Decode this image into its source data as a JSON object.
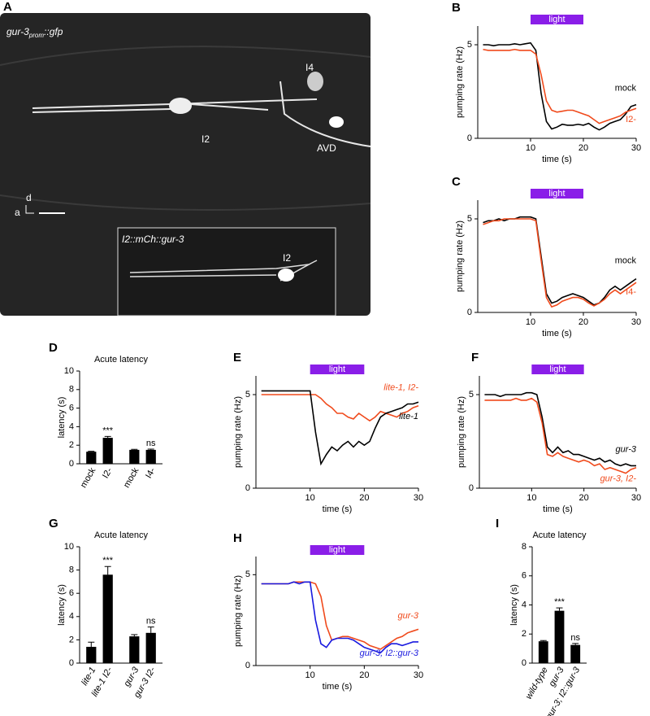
{
  "figure": {
    "panel": "A",
    "title": [
      "gur-3",
      "prom",
      "::gfp"
    ],
    "labels": [
      "I4",
      "I2",
      "AVD"
    ],
    "axes": [
      "a",
      "d"
    ],
    "inset": {
      "title": "I2::mCh::gur-3",
      "label": "I2"
    }
  },
  "chart_data": [
    {
      "panel": "B",
      "type": "line",
      "xlabel": "time (s)",
      "ylabel": "pumping rate (Hz)",
      "xlim": [
        0,
        30
      ],
      "xticks": [
        10,
        20,
        30
      ],
      "ylim": [
        0,
        6
      ],
      "yticks": [
        0,
        5
      ],
      "light": {
        "label": "light",
        "start": 10,
        "end": 20
      },
      "x": [
        1,
        2,
        3,
        4,
        5,
        6,
        7,
        8,
        9,
        10,
        11,
        12,
        13,
        14,
        15,
        16,
        17,
        18,
        19,
        20,
        21,
        22,
        23,
        24,
        25,
        26,
        27,
        28,
        29,
        30
      ],
      "series": [
        {
          "name": "mock",
          "color": "#000000",
          "values": [
            5.0,
            5.0,
            4.95,
            5.0,
            5.0,
            5.0,
            5.05,
            5.0,
            5.05,
            5.1,
            4.7,
            2.4,
            0.9,
            0.5,
            0.6,
            0.75,
            0.7,
            0.7,
            0.75,
            0.7,
            0.8,
            0.6,
            0.45,
            0.6,
            0.8,
            0.9,
            1.0,
            1.3,
            1.7,
            1.8
          ]
        },
        {
          "name": "I2-",
          "color": "#f04a1c",
          "values": [
            4.75,
            4.7,
            4.7,
            4.7,
            4.7,
            4.7,
            4.75,
            4.7,
            4.7,
            4.7,
            4.5,
            3.4,
            2.0,
            1.5,
            1.4,
            1.45,
            1.5,
            1.5,
            1.4,
            1.3,
            1.2,
            1.0,
            0.8,
            0.9,
            1.0,
            1.1,
            1.2,
            1.4,
            1.5,
            1.6
          ]
        }
      ]
    },
    {
      "panel": "C",
      "type": "line",
      "xlabel": "time (s)",
      "ylabel": "pumping rate (Hz)",
      "xlim": [
        0,
        30
      ],
      "xticks": [
        10,
        20,
        30
      ],
      "ylim": [
        0,
        6
      ],
      "yticks": [
        0,
        5
      ],
      "light": {
        "label": "light",
        "start": 10,
        "end": 20
      },
      "x": [
        1,
        2,
        3,
        4,
        5,
        6,
        7,
        8,
        9,
        10,
        11,
        12,
        13,
        14,
        15,
        16,
        17,
        18,
        19,
        20,
        21,
        22,
        23,
        24,
        25,
        26,
        27,
        28,
        29,
        30
      ],
      "series": [
        {
          "name": "mock",
          "color": "#000000",
          "values": [
            4.8,
            4.9,
            4.9,
            5.0,
            4.9,
            5.0,
            5.0,
            5.1,
            5.1,
            5.1,
            5.0,
            3.0,
            1.0,
            0.5,
            0.6,
            0.8,
            0.9,
            1.0,
            0.9,
            0.8,
            0.6,
            0.4,
            0.5,
            0.8,
            1.2,
            1.4,
            1.2,
            1.4,
            1.6,
            1.8
          ]
        },
        {
          "name": "I4-",
          "color": "#f04a1c",
          "values": [
            4.7,
            4.8,
            4.9,
            4.9,
            5.0,
            5.0,
            5.0,
            5.0,
            5.0,
            5.0,
            4.9,
            2.8,
            0.8,
            0.3,
            0.4,
            0.6,
            0.7,
            0.8,
            0.8,
            0.7,
            0.5,
            0.35,
            0.5,
            0.7,
            1.0,
            1.2,
            1.0,
            1.2,
            1.4,
            1.6
          ]
        }
      ]
    },
    {
      "panel": "D",
      "type": "bar",
      "title": "Acute latency",
      "ylabel": "latency (s)",
      "ylim": [
        0,
        10
      ],
      "yticks": [
        0,
        2,
        4,
        6,
        8,
        10
      ],
      "color": "#000000",
      "categories": [
        "mock",
        "I2-",
        "mock",
        "I4-"
      ],
      "values": [
        1.3,
        2.8,
        1.5,
        1.5
      ],
      "errors": [
        0.05,
        0.15,
        0.06,
        0.08
      ],
      "annotations": [
        null,
        "***",
        null,
        "ns"
      ]
    },
    {
      "panel": "E",
      "type": "line",
      "xlabel": "time (s)",
      "ylabel": "pumping rate (Hz)",
      "xlim": [
        0,
        30
      ],
      "xticks": [
        10,
        20,
        30
      ],
      "ylim": [
        0,
        6
      ],
      "yticks": [
        0,
        5
      ],
      "light": {
        "label": "light",
        "start": 10,
        "end": 20
      },
      "x": [
        1,
        2,
        3,
        4,
        5,
        6,
        7,
        8,
        9,
        10,
        11,
        12,
        13,
        14,
        15,
        16,
        17,
        18,
        19,
        20,
        21,
        22,
        23,
        24,
        25,
        26,
        27,
        28,
        29,
        30
      ],
      "series": [
        {
          "name": "lite-1, I2-",
          "color": "#f04a1c",
          "values": [
            5.0,
            5.0,
            5.0,
            5.0,
            5.0,
            5.0,
            5.0,
            5.0,
            5.0,
            5.0,
            5.0,
            4.8,
            4.5,
            4.3,
            4.0,
            4.0,
            3.8,
            3.7,
            4.0,
            3.8,
            3.6,
            3.8,
            4.1,
            4.0,
            3.9,
            3.8,
            4.0,
            4.1,
            4.3,
            4.4
          ]
        },
        {
          "name": "lite-1",
          "color": "#000000",
          "values": [
            5.2,
            5.2,
            5.2,
            5.2,
            5.2,
            5.2,
            5.2,
            5.2,
            5.2,
            5.2,
            3.0,
            1.3,
            1.8,
            2.2,
            2.0,
            2.3,
            2.5,
            2.2,
            2.5,
            2.3,
            2.5,
            3.2,
            3.8,
            4.0,
            4.1,
            4.2,
            4.3,
            4.5,
            4.5,
            4.6
          ]
        }
      ]
    },
    {
      "panel": "F",
      "type": "line",
      "xlabel": "time (s)",
      "ylabel": "pumping rate (Hz)",
      "xlim": [
        0,
        30
      ],
      "xticks": [
        10,
        20,
        30
      ],
      "ylim": [
        0,
        6
      ],
      "yticks": [
        0,
        5
      ],
      "light": {
        "label": "light",
        "start": 10,
        "end": 20
      },
      "x": [
        1,
        2,
        3,
        4,
        5,
        6,
        7,
        8,
        9,
        10,
        11,
        12,
        13,
        14,
        15,
        16,
        17,
        18,
        19,
        20,
        21,
        22,
        23,
        24,
        25,
        26,
        27,
        28,
        29,
        30
      ],
      "series": [
        {
          "name": "gur-3",
          "color": "#000000",
          "values": [
            5.0,
            5.0,
            5.0,
            4.9,
            5.0,
            5.0,
            5.0,
            5.0,
            5.1,
            5.1,
            5.0,
            3.8,
            2.2,
            1.9,
            2.2,
            1.9,
            2.0,
            1.8,
            1.8,
            1.7,
            1.6,
            1.5,
            1.6,
            1.4,
            1.5,
            1.3,
            1.2,
            1.3,
            1.2,
            1.2
          ]
        },
        {
          "name": "gur-3, I2-",
          "color": "#f04a1c",
          "values": [
            4.7,
            4.7,
            4.7,
            4.7,
            4.7,
            4.7,
            4.8,
            4.7,
            4.7,
            4.8,
            4.6,
            3.5,
            1.8,
            1.7,
            1.9,
            1.7,
            1.6,
            1.5,
            1.4,
            1.5,
            1.4,
            1.2,
            1.3,
            1.0,
            1.1,
            1.0,
            0.9,
            0.8,
            1.0,
            1.1
          ]
        }
      ]
    },
    {
      "panel": "G",
      "type": "bar",
      "title": "Acute latency",
      "ylabel": "latency (s)",
      "ylim": [
        0,
        10
      ],
      "yticks": [
        0,
        2,
        4,
        6,
        8,
        10
      ],
      "color": "#000000",
      "categories": [
        "lite-1",
        "lite-1 I2-",
        "gur-3",
        "gur-3 I2-"
      ],
      "values": [
        1.4,
        7.6,
        2.3,
        2.6
      ],
      "errors": [
        0.4,
        0.7,
        0.15,
        0.5
      ],
      "annotations": [
        null,
        "***",
        null,
        "ns"
      ]
    },
    {
      "panel": "H",
      "type": "line",
      "xlabel": "time (s)",
      "ylabel": "pumping rate (Hz)",
      "xlim": [
        0,
        30
      ],
      "xticks": [
        10,
        20,
        30
      ],
      "ylim": [
        0,
        6
      ],
      "yticks": [
        0,
        5
      ],
      "light": {
        "label": "light",
        "start": 10,
        "end": 20
      },
      "x": [
        1,
        2,
        3,
        4,
        5,
        6,
        7,
        8,
        9,
        10,
        11,
        12,
        13,
        14,
        15,
        16,
        17,
        18,
        19,
        20,
        21,
        22,
        23,
        24,
        25,
        26,
        27,
        28,
        29,
        30
      ],
      "series": [
        {
          "name": "gur-3",
          "color": "#f04a1c",
          "values": [
            4.5,
            4.5,
            4.5,
            4.5,
            4.5,
            4.5,
            4.6,
            4.6,
            4.6,
            4.6,
            4.5,
            3.8,
            2.2,
            1.4,
            1.5,
            1.6,
            1.6,
            1.5,
            1.4,
            1.3,
            1.1,
            1.0,
            0.9,
            1.1,
            1.3,
            1.5,
            1.6,
            1.8,
            1.9,
            2.0
          ]
        },
        {
          "name": "gur-3; I2::gur-3",
          "color": "#1a1adf",
          "values": [
            4.5,
            4.5,
            4.5,
            4.5,
            4.5,
            4.5,
            4.6,
            4.5,
            4.6,
            4.6,
            2.5,
            1.2,
            1.0,
            1.4,
            1.5,
            1.5,
            1.5,
            1.4,
            1.2,
            1.0,
            0.9,
            0.8,
            0.7,
            1.0,
            1.2,
            1.2,
            1.1,
            1.2,
            1.3,
            1.3
          ]
        }
      ]
    },
    {
      "panel": "I",
      "type": "bar",
      "title": "Acute latency",
      "ylabel": "latency (s)",
      "ylim": [
        0,
        8
      ],
      "yticks": [
        0,
        2,
        4,
        6,
        8
      ],
      "color": "#000000",
      "categories": [
        "wild-type",
        "gur-3",
        "gur-3; I2::gur-3"
      ],
      "values": [
        1.5,
        3.6,
        1.25
      ],
      "errors": [
        0.05,
        0.2,
        0.1
      ],
      "annotations": [
        null,
        "***",
        "ns"
      ]
    }
  ]
}
